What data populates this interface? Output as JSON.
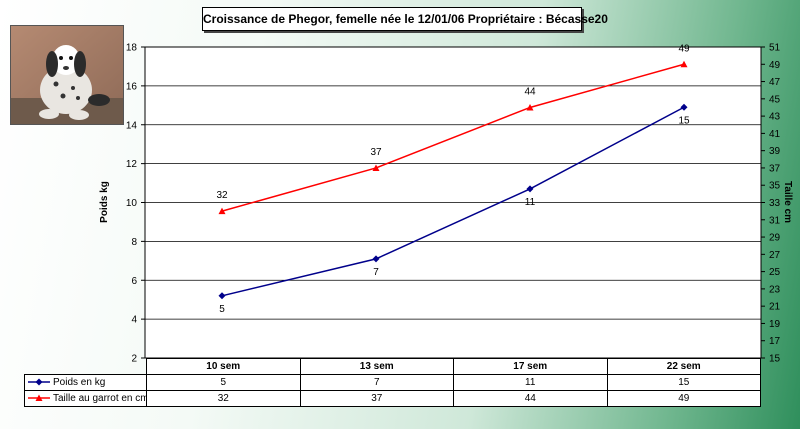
{
  "title": "Croissance de Phegor, femelle née le 12/01/06  Propriétaire : Bécasse20",
  "chart_data": {
    "type": "line",
    "categories": [
      "10 sem",
      "13 sem",
      "17 sem",
      "22 sem"
    ],
    "series": [
      {
        "name": "Poids en kg",
        "values": [
          5.2,
          7.1,
          10.7,
          14.9
        ],
        "labels": [
          "5",
          "7",
          "11",
          "15"
        ],
        "color": "#00008b",
        "marker": "diamond",
        "axis": "left"
      },
      {
        "name": "Taille au garrot en cm",
        "values": [
          32,
          37,
          44,
          49
        ],
        "labels": [
          "32",
          "37",
          "44",
          "49"
        ],
        "color": "#ff0000",
        "marker": "triangle",
        "axis": "right"
      }
    ],
    "ylabel": "Poids kg",
    "ylabel_right": "Taille cm",
    "ylim": [
      2,
      18
    ],
    "yticks": [
      "2",
      "4",
      "6",
      "8",
      "10",
      "12",
      "14",
      "16",
      "18"
    ],
    "ylim_right": [
      15,
      51
    ],
    "yticks_right": [
      "15",
      "17",
      "19",
      "21",
      "23",
      "25",
      "27",
      "29",
      "31",
      "33",
      "35",
      "37",
      "39",
      "41",
      "43",
      "45",
      "47",
      "49",
      "51"
    ],
    "grid": "horizontal",
    "legend": "data-table"
  },
  "table": {
    "rows": [
      {
        "label": "Poids en kg",
        "values": [
          "5",
          "7",
          "11",
          "15"
        ]
      },
      {
        "label": "Taille au garrot en cm",
        "values": [
          "32",
          "37",
          "44",
          "49"
        ]
      }
    ]
  }
}
